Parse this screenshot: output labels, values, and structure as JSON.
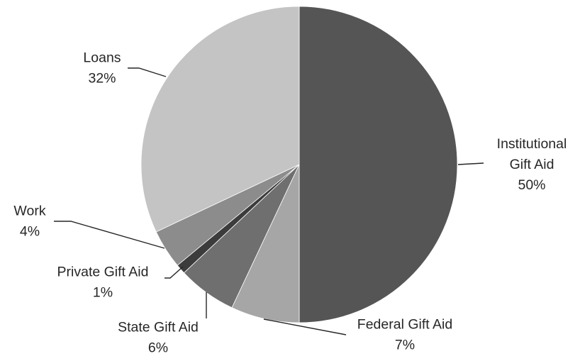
{
  "chart_data": {
    "type": "pie",
    "title": "",
    "slices": [
      {
        "name": "Institutional Gift Aid",
        "label_lines": [
          "Institutional",
          "Gift Aid"
        ],
        "value": 50,
        "value_label": "50%",
        "color": "#555555"
      },
      {
        "name": "Federal Gift Aid",
        "label_lines": [
          "Federal Gift Aid"
        ],
        "value": 7,
        "value_label": "7%",
        "color": "#a6a6a6"
      },
      {
        "name": "State Gift Aid",
        "label_lines": [
          "State Gift Aid"
        ],
        "value": 6,
        "value_label": "6%",
        "color": "#6f6f6f"
      },
      {
        "name": "Private Gift Aid",
        "label_lines": [
          "Private Gift Aid"
        ],
        "value": 1,
        "value_label": "1%",
        "color": "#3c3c3c"
      },
      {
        "name": "Work",
        "label_lines": [
          "Work"
        ],
        "value": 4,
        "value_label": "4%",
        "color": "#8c8c8c"
      },
      {
        "name": "Loans",
        "label_lines": [
          "Loans"
        ],
        "value": 32,
        "value_label": "32%",
        "color": "#c4c4c4"
      }
    ],
    "start_angle": "12 o'clock",
    "direction": "clockwise",
    "legend": "none",
    "labels": "outside with leader lines"
  }
}
